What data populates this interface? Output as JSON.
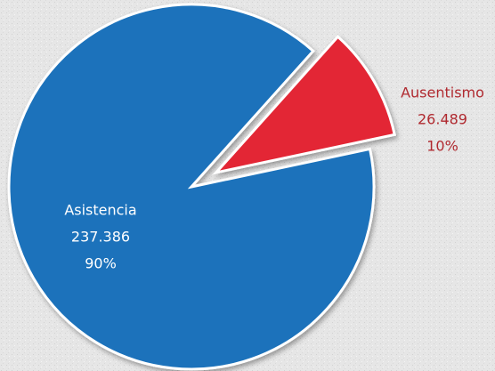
{
  "chart_data": {
    "type": "pie",
    "categories": [
      "Asistencia",
      "Ausentismo"
    ],
    "values": [
      237386,
      26489
    ],
    "value_labels": [
      "237.386",
      "26.489"
    ],
    "percentages": [
      90,
      10
    ],
    "percentage_labels": [
      "90%",
      "10%"
    ],
    "colors": [
      "#1a72bb",
      "#e32636"
    ]
  }
}
